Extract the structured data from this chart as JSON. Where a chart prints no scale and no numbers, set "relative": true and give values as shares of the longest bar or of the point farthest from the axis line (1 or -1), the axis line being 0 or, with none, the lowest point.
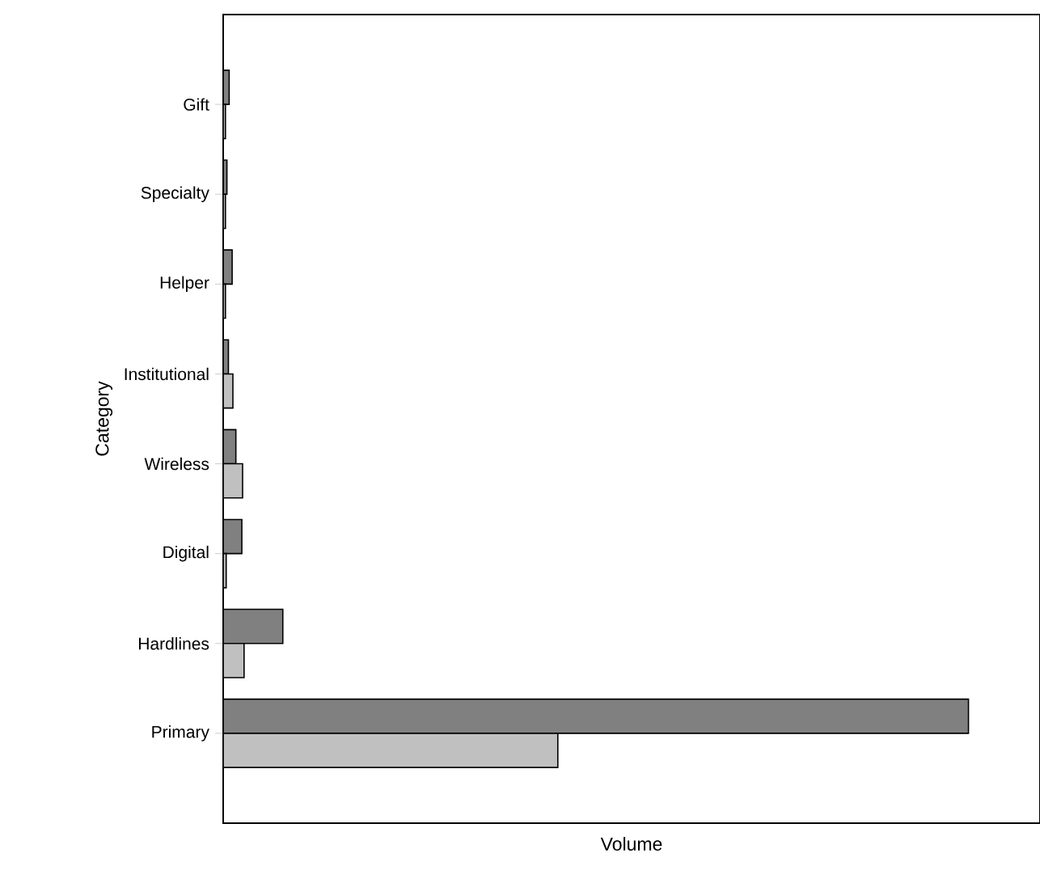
{
  "chart_data": {
    "type": "bar",
    "orientation": "horizontal",
    "relative": true,
    "xlabel": "Volume",
    "ylabel": "Category",
    "categories": [
      "Gift",
      "Specialty",
      "Helper",
      "Institutional",
      "Wireless",
      "Digital",
      "Hardlines",
      "Primary"
    ],
    "series": [
      {
        "color": "#808080",
        "values": [
          0.008,
          0.005,
          0.012,
          0.007,
          0.017,
          0.025,
          0.08,
          1
        ]
      },
      {
        "color": "#c0c0c0",
        "values": [
          0.003,
          0.003,
          0.003,
          0.013,
          0.026,
          0.004,
          0.028,
          0.449
        ]
      }
    ]
  }
}
